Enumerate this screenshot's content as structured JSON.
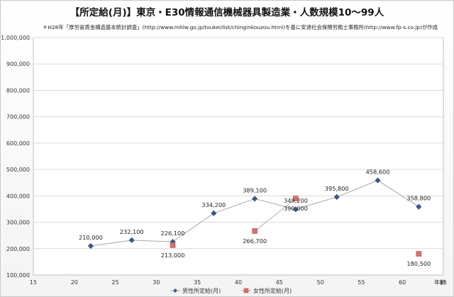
{
  "title": "【所定給(月)】東京・E30情報通信機械器具製造業・人数規模10～99人",
  "note": "＊H28年「厚労省賃金構造基本統計調査」(http://www.mhlw.go.jp/toukei/list/chinginkouzou.html)を基に安達社会保険労務士事務所(http://www.fp-s.co.jp)が作成",
  "chart_data": {
    "type": "line",
    "title": "【所定給(月)】東京・E30情報通信機械器具製造業・人数規模10～99人",
    "xlabel": "年齢",
    "ylabel": "",
    "xlim": [
      15,
      65
    ],
    "ylim": [
      100000,
      1000000
    ],
    "xticks": [
      15,
      20,
      25,
      30,
      35,
      40,
      45,
      50,
      55,
      60,
      65
    ],
    "yticks": [
      100000,
      200000,
      300000,
      400000,
      500000,
      600000,
      700000,
      800000,
      900000,
      1000000
    ],
    "ytick_labels": [
      "100,000",
      "200,000",
      "300,000",
      "400,000",
      "500,000",
      "600,000",
      "700,000",
      "800,000",
      "900,000",
      "1,000,000"
    ],
    "grid": "horizontal",
    "legend": "bottom",
    "series": [
      {
        "name": "男性所定給(月)",
        "color": "#3a5a8c",
        "marker": "diamond",
        "points": [
          {
            "x": 22,
            "y": 210000,
            "label": "210,000"
          },
          {
            "x": 27,
            "y": 232100,
            "label": "232,100"
          },
          {
            "x": 32,
            "y": 226100,
            "label": "226,100"
          },
          {
            "x": 37,
            "y": 334200,
            "label": "334,200"
          },
          {
            "x": 42,
            "y": 389100,
            "label": "389,100"
          },
          {
            "x": 47,
            "y": 349200,
            "label": "349,200"
          },
          {
            "x": 52,
            "y": 395800,
            "label": "395,800"
          },
          {
            "x": 57,
            "y": 458600,
            "label": "458,600"
          },
          {
            "x": 62,
            "y": 358800,
            "label": "358,800"
          }
        ]
      },
      {
        "name": "女性所定給(月)",
        "color": "#d9706a",
        "marker": "square",
        "points": [
          {
            "x": 32,
            "y": 213000,
            "label": "213,000"
          },
          {
            "x": 42,
            "y": 266700,
            "label": "266,700"
          },
          {
            "x": 47,
            "y": 390000,
            "label": "390,000"
          },
          {
            "x": 62,
            "y": 180500,
            "label": "180,500"
          }
        ],
        "segments": [
          [
            1,
            2
          ]
        ]
      }
    ]
  }
}
